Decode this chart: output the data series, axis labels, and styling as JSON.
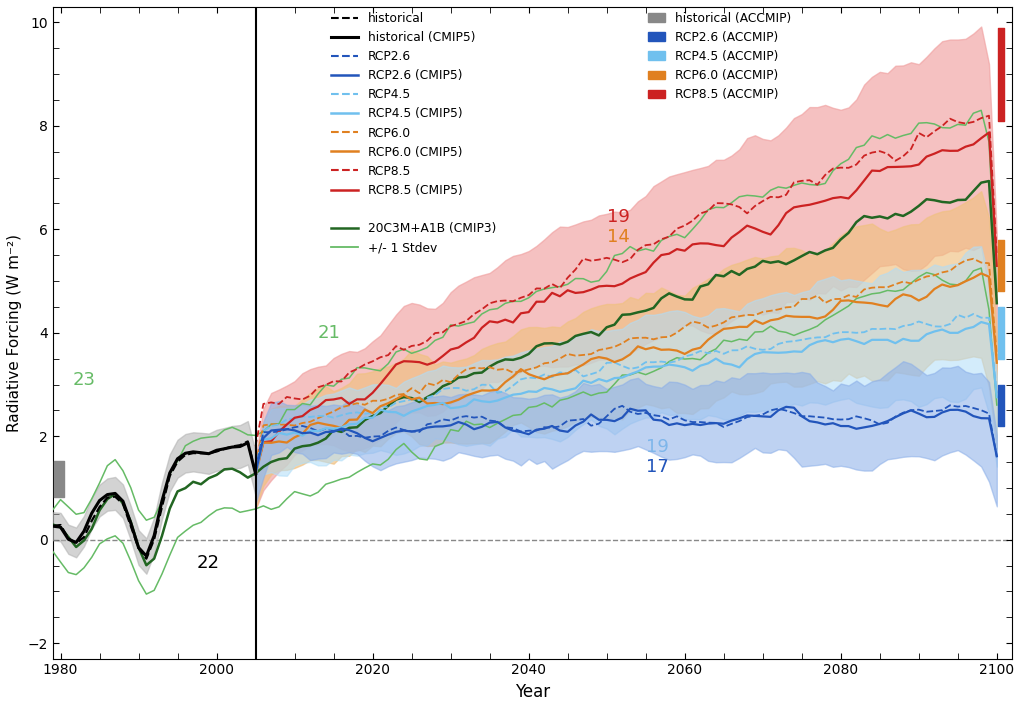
{
  "xlabel": "Year",
  "ylabel": "Radiative Forcing (W m⁻²)",
  "xlim": [
    1979,
    2102
  ],
  "ylim": [
    -2.3,
    10.3
  ],
  "yticks": [
    -2,
    0,
    2,
    4,
    6,
    8,
    10
  ],
  "xticks": [
    1980,
    2000,
    2020,
    2040,
    2060,
    2080,
    2100
  ],
  "vline_x": 2005,
  "colors": {
    "hist_cmip5_band": "#b0b0b0",
    "rcp26": "#2255bb",
    "rcp26_band": "#8aaee8",
    "rcp45": "#70c0ee",
    "rcp45_band": "#b0ddf8",
    "rcp60": "#e08020",
    "rcp60_band": "#f0c080",
    "rcp85": "#cc2222",
    "rcp85_band": "#f0a0a0",
    "cmip3_mean": "#226622",
    "cmip3_stdev": "#66bb66"
  },
  "ann23_color": "#66bb66",
  "ann21_color": "#66bb66",
  "ann22_color": "#000000",
  "ann19r_color": "#cc2222",
  "ann14_color": "#e08020",
  "ann19b_color": "#70c0ee",
  "ann17_color": "#2255bb",
  "bar_hist_color": "#888888",
  "bar_rcp26_color": "#2255bb",
  "bar_rcp45_color": "#70c0ee",
  "bar_rcp60_color": "#e08020",
  "bar_rcp85_color": "#cc2222"
}
